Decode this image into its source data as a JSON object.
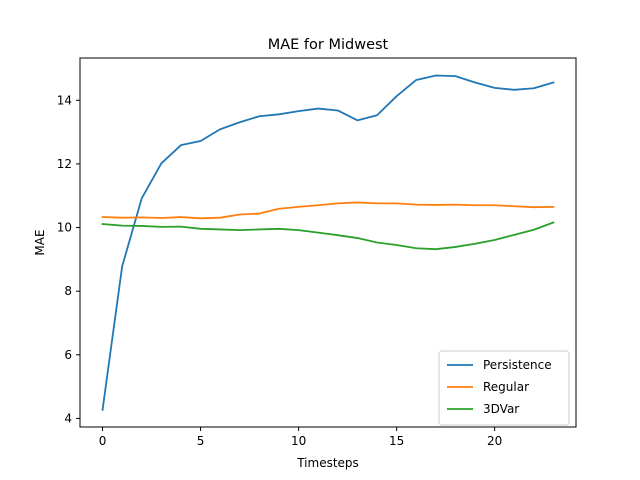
{
  "chart_data": {
    "type": "line",
    "title": "MAE for Midwest",
    "xlabel": "Timesteps",
    "ylabel": "MAE",
    "xlim": [
      -1.15,
      24.15
    ],
    "ylim": [
      3.73,
      15.33
    ],
    "xticks": [
      0,
      5,
      10,
      15,
      20
    ],
    "yticks": [
      4,
      6,
      8,
      10,
      12,
      14
    ],
    "grid": false,
    "legend_position": "bottom-right",
    "x": [
      0,
      1,
      2,
      3,
      4,
      5,
      6,
      7,
      8,
      9,
      10,
      11,
      12,
      13,
      14,
      15,
      16,
      17,
      18,
      19,
      20,
      21,
      22,
      23
    ],
    "series": [
      {
        "name": "Persistence",
        "color": "#1f77b4",
        "values": [
          4.27,
          8.78,
          10.92,
          12.02,
          12.59,
          12.72,
          13.09,
          13.31,
          13.5,
          13.56,
          13.66,
          13.74,
          13.68,
          13.37,
          13.53,
          14.13,
          14.64,
          14.78,
          14.76,
          14.56,
          14.39,
          14.33,
          14.38,
          14.56
        ]
      },
      {
        "name": "Regular",
        "color": "#ff7f0e",
        "values": [
          10.33,
          10.31,
          10.32,
          10.3,
          10.33,
          10.29,
          10.31,
          10.41,
          10.44,
          10.59,
          10.65,
          10.7,
          10.76,
          10.79,
          10.76,
          10.76,
          10.72,
          10.71,
          10.72,
          10.7,
          10.7,
          10.67,
          10.64,
          10.65
        ]
      },
      {
        "name": "3DVar",
        "color": "#2ca02c",
        "values": [
          10.11,
          10.06,
          10.05,
          10.02,
          10.03,
          9.96,
          9.94,
          9.92,
          9.94,
          9.96,
          9.92,
          9.84,
          9.76,
          9.67,
          9.53,
          9.45,
          9.35,
          9.32,
          9.39,
          9.49,
          9.61,
          9.77,
          9.93,
          10.16
        ]
      }
    ]
  }
}
